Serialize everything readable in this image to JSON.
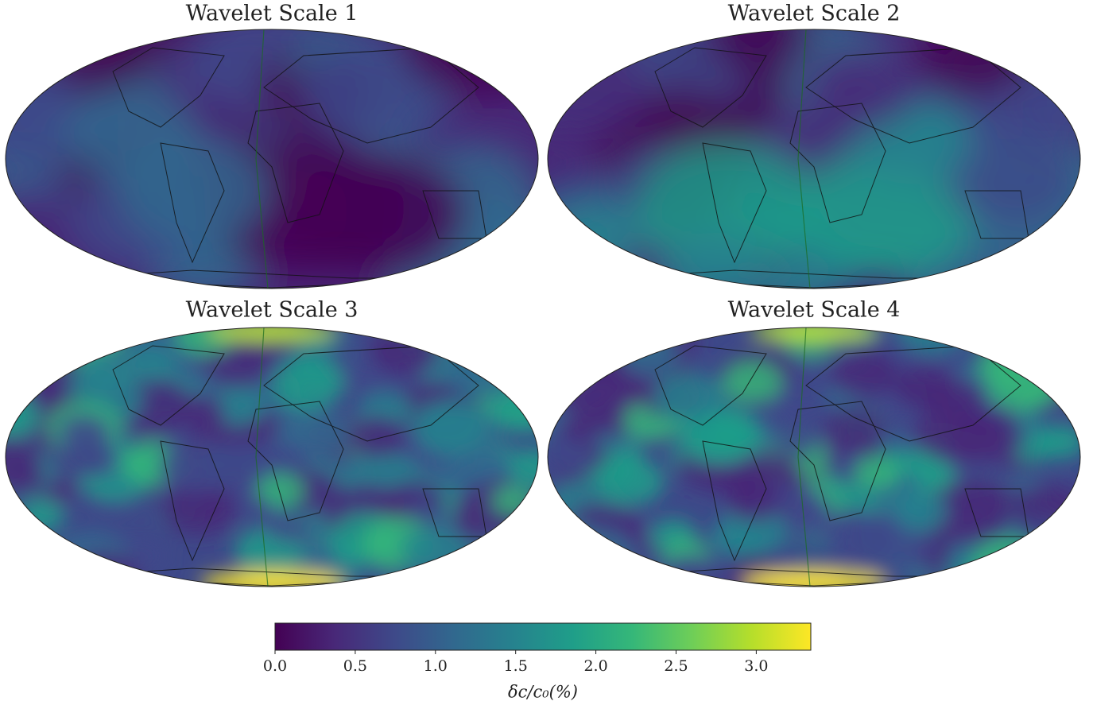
{
  "panels": [
    {
      "title": "Wavelet Scale 1"
    },
    {
      "title": "Wavelet Scale 2"
    },
    {
      "title": "Wavelet Scale 3"
    },
    {
      "title": "Wavelet Scale 4"
    }
  ],
  "colorbar": {
    "label": "δc/c₀(%)",
    "lim": [
      0,
      3.34
    ],
    "ticks": [
      {
        "value": 0,
        "label": "0.0"
      },
      {
        "value": 0.5,
        "label": "0.5"
      },
      {
        "value": 1,
        "label": "1.0"
      },
      {
        "value": 1.5,
        "label": "1.5"
      },
      {
        "value": 2,
        "label": "2.0"
      },
      {
        "value": 2.5,
        "label": "2.5"
      },
      {
        "value": 3,
        "label": "3.0"
      }
    ],
    "colormap": [
      "#440154",
      "#482878",
      "#3e4989",
      "#31688e",
      "#26828e",
      "#1f9e89",
      "#35b779",
      "#6ece58",
      "#b5de2b",
      "#fde725"
    ]
  }
}
